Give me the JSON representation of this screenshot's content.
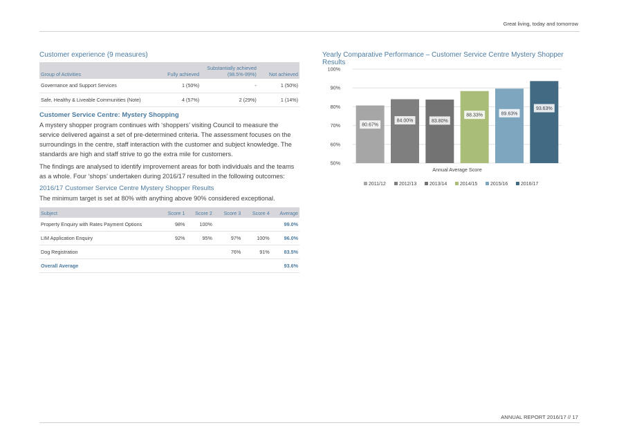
{
  "header": {
    "tagline": "Great living, today and tomorrow"
  },
  "footer": {
    "text": "ANNUAL REPORT 2016/17  //  17"
  },
  "experience": {
    "title": "Customer experience (9 measures)",
    "columns": [
      "Group of Activities",
      "Fully achieved",
      "Substantially achieved (98.5%-99%)",
      "Not achieved"
    ],
    "rows": [
      [
        "Governance and Support Services",
        "1 (50%)",
        "-",
        "1 (50%)"
      ],
      [
        "Safe, Healthy & Liveable Communities (Note)",
        "4 (57%)",
        "2 (29%)",
        "1 (14%)"
      ]
    ]
  },
  "mystery": {
    "heading": "Customer Service Centre: Mystery Shopping",
    "para1": "A mystery shopper program continues with ‘shoppers’ visiting Council to measure the service delivered against a set of pre-determined criteria. The assessment focuses on the surroundings in the centre, staff interaction with the customer and subject knowledge. The standards are high and staff strive to go the extra mile for customers.",
    "para2": "The findings are analysed to identify improvement areas for both individuals and the teams as a whole. Four ‘shops’ undertaken during 2016/17 resulted in the following outcomes:",
    "results_heading": "2016/17 Customer Service Centre Mystery Shopper Results",
    "target_text": "The minimum target is set at 80% with anything above 90% considered exceptional."
  },
  "shopper_table": {
    "columns": [
      "Subject",
      "Score 1",
      "Score 2",
      "Score 3",
      "Score 4",
      "Average"
    ],
    "rows": [
      [
        "Property Enquiry with Rates Payment Options",
        "98%",
        "100%",
        "",
        "",
        "99.0%"
      ],
      [
        "LIM Application Enquiry",
        "92%",
        "95%",
        "97%",
        "100%",
        "96.0%"
      ],
      [
        "Dog Registration",
        "",
        "",
        "76%",
        "91%",
        "83.5%"
      ]
    ],
    "overall_label": "Overall Average",
    "overall_value": "93.6%"
  },
  "chart_data": {
    "type": "bar",
    "title": "Yearly Comparative Performance – Customer Service Centre Mystery Shopper Results",
    "xlabel": "Annual Average Score",
    "ylabel": "",
    "categories": [
      "2011/12",
      "2012/13",
      "2013/14",
      "2014/15",
      "2015/16",
      "2016/17"
    ],
    "values": [
      80.67,
      84.0,
      83.8,
      88.33,
      89.63,
      93.63
    ],
    "data_labels": [
      "80.67%",
      "84.00%",
      "83.80%",
      "88.33%",
      "89.63%",
      "93.63%"
    ],
    "colors": [
      "#a6a6a6",
      "#7f7f7f",
      "#737373",
      "#a9bc78",
      "#7ea6bf",
      "#426a82"
    ],
    "yticks": [
      "50%",
      "60%",
      "70%",
      "80%",
      "90%",
      "100%"
    ],
    "ylim": [
      50,
      100
    ],
    "legend_position": "bottom",
    "grid": true
  }
}
